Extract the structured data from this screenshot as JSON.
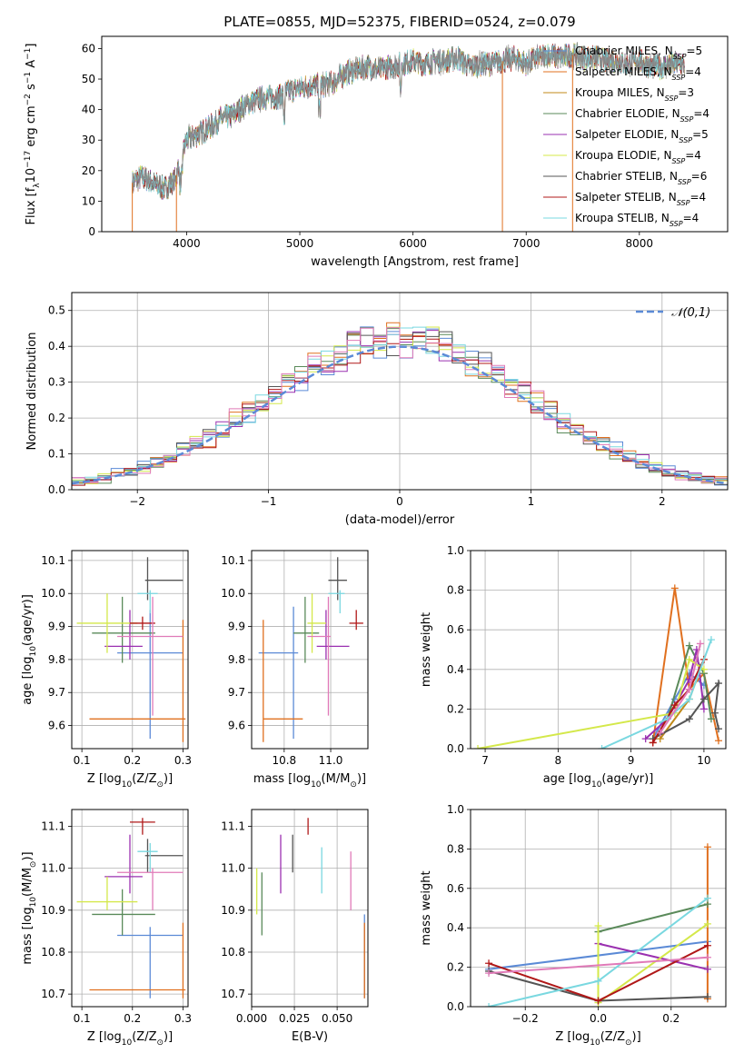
{
  "title": "PLATE=0855, MJD=52375, FIBERID=0524, z=0.079",
  "colors": {
    "Chabrier MILES": "#5b8ad6",
    "Salpeter MILES": "#e0701f",
    "Kroupa MILES": "#c08a1a",
    "Chabrier ELODIE": "#5a8a5a",
    "Salpeter ELODIE": "#9a30b0",
    "Kroupa ELODIE": "#d4e84a",
    "Chabrier STELIB": "#555555",
    "Salpeter STELIB": "#b01818",
    "Kroupa STELIB": "#7ad8e0",
    "pink": "#e07ab8",
    "gauss": "#5b8ad6",
    "grid": "#b0b0b0"
  },
  "chart_data": [
    {
      "id": "spectrum",
      "type": "line",
      "title": "PLATE=0855, MJD=52375, FIBERID=0524, z=0.079",
      "xlabel": "wavelength [Angstrom, rest frame]",
      "ylabel": "Flux [f_λ10^-17 erg cm^-2 s^-1 A^-1]",
      "xlim": [
        3250,
        8780
      ],
      "ylim": [
        0,
        64
      ],
      "xticks": [
        "4000",
        "5000",
        "6000",
        "7000",
        "8000"
      ],
      "yticks": [
        "0",
        "10",
        "20",
        "30",
        "40",
        "50",
        "60"
      ],
      "grid": false,
      "legend_position": "right",
      "legend": [
        {
          "name": "Chabrier MILES",
          "n": "5"
        },
        {
          "name": "Salpeter MILES",
          "n": "4"
        },
        {
          "name": "Kroupa MILES",
          "n": "3"
        },
        {
          "name": "Chabrier ELODIE",
          "n": "4"
        },
        {
          "name": "Salpeter ELODIE",
          "n": "5"
        },
        {
          "name": "Kroupa ELODIE",
          "n": "4"
        },
        {
          "name": "Chabrier STELIB",
          "n": "6"
        },
        {
          "name": "Salpeter STELIB",
          "n": "4"
        },
        {
          "name": "Kroupa STELIB",
          "n": "4"
        }
      ],
      "envelope": {
        "x": [
          3520,
          3600,
          3700,
          3800,
          3900,
          3950,
          4000,
          4100,
          4200,
          4300,
          4400,
          4500,
          4600,
          4700,
          4800,
          4900,
          5000,
          5100,
          5200,
          5300,
          5400,
          5500,
          5600,
          5700,
          5800,
          5900,
          6000,
          6100,
          6200,
          6300,
          6400,
          6500,
          6600,
          6700,
          6800,
          6900,
          7000,
          7100,
          7200,
          7300,
          7400,
          7500,
          7600,
          7700,
          7800,
          7900,
          8000,
          8100,
          8200,
          8300,
          8400
        ],
        "y": [
          16,
          18,
          16,
          14,
          17,
          25,
          30,
          32,
          34,
          37,
          38,
          41,
          43,
          44,
          44,
          46,
          47,
          48,
          48,
          49,
          52,
          53,
          54,
          53,
          54,
          55,
          56,
          55,
          56,
          56,
          57,
          54,
          55,
          55,
          56,
          57,
          55,
          57,
          58,
          57,
          58,
          57,
          57,
          56,
          56,
          55,
          56,
          54,
          54,
          55,
          55
        ]
      },
      "drop_lines_x": [
        3520,
        3910,
        6790,
        7410
      ]
    },
    {
      "id": "residuals",
      "type": "bar",
      "xlabel": "(data-model)/error",
      "ylabel": "Normed distribution",
      "xlim": [
        -2.5,
        2.5
      ],
      "ylim": [
        0,
        0.55
      ],
      "xticks": [
        "−2",
        "−1",
        "0",
        "1",
        "2"
      ],
      "yticks": [
        "0.0",
        "0.1",
        "0.2",
        "0.3",
        "0.4",
        "0.5"
      ],
      "grid": true,
      "legend": [
        {
          "name": "𝒩(0,1)"
        }
      ],
      "legend_position": "top-right",
      "bin_width": 0.1
    },
    {
      "id": "age-vs-Z",
      "type": "scatter",
      "xlabel": "Z [log10(Z/Z☉)]",
      "ylabel": "age  [log10(age/yr)]",
      "xlim": [
        0.08,
        0.31
      ],
      "ylim": [
        9.53,
        10.13
      ],
      "xticks": [
        "0.1",
        "0.2",
        "0.3"
      ],
      "yticks": [
        "9.6",
        "9.7",
        "9.8",
        "9.9",
        "10.0",
        "10.1"
      ],
      "grid": true,
      "points": [
        {
          "c": "Chabrier MILES",
          "x": 0.235,
          "xe": [
            0.17,
            0.3
          ],
          "y": 9.82,
          "ye": [
            9.56,
            9.95
          ]
        },
        {
          "c": "Salpeter MILES",
          "x": 0.3,
          "xe": [
            0.115,
            0.305
          ],
          "y": 9.62,
          "ye": [
            9.55,
            9.92
          ]
        },
        {
          "c": "Chabrier ELODIE",
          "x": 0.18,
          "xe": [
            0.12,
            0.245
          ],
          "y": 9.88,
          "ye": [
            9.79,
            9.99
          ]
        },
        {
          "c": "Salpeter ELODIE",
          "x": 0.195,
          "xe": [
            0.145,
            0.22
          ],
          "y": 9.84,
          "ye": [
            9.8,
            9.95
          ]
        },
        {
          "c": "Kroupa ELODIE",
          "x": 0.15,
          "xe": [
            0.09,
            0.21
          ],
          "y": 9.91,
          "ye": [
            9.82,
            10.0
          ]
        },
        {
          "c": "Chabrier STELIB",
          "x": 0.23,
          "xe": [
            0.225,
            0.3
          ],
          "y": 10.04,
          "ye": [
            9.98,
            10.11
          ]
        },
        {
          "c": "Salpeter STELIB",
          "x": 0.22,
          "xe": [
            0.195,
            0.245
          ],
          "y": 9.91,
          "ye": [
            9.89,
            9.93
          ]
        },
        {
          "c": "Kroupa STELIB",
          "x": 0.235,
          "xe": [
            0.21,
            0.25
          ],
          "y": 10.0,
          "ye": [
            9.94,
            10.01
          ]
        },
        {
          "c": "pink",
          "x": 0.24,
          "xe": [
            0.17,
            0.3
          ],
          "y": 9.87,
          "ye": [
            9.63,
            9.99
          ]
        }
      ]
    },
    {
      "id": "age-vs-mass",
      "type": "scatter",
      "xlabel": "mass [log10(M/M☉)]",
      "ylabel": "",
      "xlim": [
        10.66,
        11.16
      ],
      "ylim": [
        9.53,
        10.13
      ],
      "xticks": [
        "10.8",
        "11.0"
      ],
      "yticks": [
        "9.6",
        "9.7",
        "9.8",
        "9.9",
        "10.0",
        "10.1"
      ],
      "grid": true,
      "points": [
        {
          "c": "Chabrier MILES",
          "x": 10.84,
          "xe": [
            10.69,
            10.86
          ],
          "y": 9.82,
          "ye": [
            9.56,
            9.96
          ]
        },
        {
          "c": "Salpeter MILES",
          "x": 10.71,
          "xe": [
            10.71,
            10.88
          ],
          "y": 9.62,
          "ye": [
            9.55,
            9.92
          ]
        },
        {
          "c": "Chabrier ELODIE",
          "x": 10.89,
          "xe": [
            10.84,
            10.95
          ],
          "y": 9.88,
          "ye": [
            9.79,
            9.99
          ]
        },
        {
          "c": "Salpeter ELODIE",
          "x": 10.98,
          "xe": [
            10.94,
            11.08
          ],
          "y": 9.84,
          "ye": [
            9.8,
            9.95
          ]
        },
        {
          "c": "Kroupa ELODIE",
          "x": 10.92,
          "xe": [
            10.9,
            10.98
          ],
          "y": 9.91,
          "ye": [
            9.82,
            10.0
          ]
        },
        {
          "c": "Chabrier STELIB",
          "x": 11.03,
          "xe": [
            10.99,
            11.07
          ],
          "y": 10.04,
          "ye": [
            9.98,
            10.11
          ]
        },
        {
          "c": "Salpeter STELIB",
          "x": 11.11,
          "xe": [
            11.08,
            11.14
          ],
          "y": 9.91,
          "ye": [
            9.89,
            9.95
          ]
        },
        {
          "c": "Kroupa STELIB",
          "x": 11.04,
          "xe": [
            10.99,
            11.06
          ],
          "y": 10.0,
          "ye": [
            9.94,
            10.01
          ]
        },
        {
          "c": "pink",
          "x": 10.99,
          "xe": [
            10.9,
            11.0
          ],
          "y": 9.87,
          "ye": [
            9.63,
            9.99
          ]
        }
      ]
    },
    {
      "id": "weight-vs-age",
      "type": "line",
      "xlabel": "age  [log10(age/yr)]",
      "ylabel": "mass weight",
      "xlim": [
        6.8,
        10.3
      ],
      "ylim": [
        0,
        1
      ],
      "xticks": [
        "7",
        "8",
        "9",
        "10"
      ],
      "yticks": [
        "0.0",
        "0.2",
        "0.4",
        "0.6",
        "0.8",
        "1.0"
      ],
      "grid": true,
      "series": [
        {
          "c": "Chabrier MILES",
          "x": [
            9.3,
            9.6,
            9.8,
            10.0
          ],
          "y": [
            0.05,
            0.25,
            0.38,
            0.32
          ]
        },
        {
          "c": "Salpeter MILES",
          "x": [
            9.3,
            9.6,
            9.8,
            10.0,
            10.2
          ],
          "y": [
            0.03,
            0.81,
            0.3,
            0.38,
            0.04
          ]
        },
        {
          "c": "Kroupa MILES",
          "x": [
            9.4,
            9.8,
            10.0
          ],
          "y": [
            0.05,
            0.25,
            0.45
          ]
        },
        {
          "c": "Chabrier ELODIE",
          "x": [
            9.5,
            9.8,
            10.0,
            10.1
          ],
          "y": [
            0.15,
            0.52,
            0.38,
            0.15
          ]
        },
        {
          "c": "Salpeter ELODIE",
          "x": [
            9.2,
            9.5,
            9.8,
            9.9,
            10.0
          ],
          "y": [
            0.05,
            0.15,
            0.35,
            0.5,
            0.2
          ]
        },
        {
          "c": "Kroupa ELODIE",
          "x": [
            6.9,
            9.6,
            9.8,
            10.0
          ],
          "y": [
            0.0,
            0.18,
            0.45,
            0.4
          ]
        },
        {
          "c": "Chabrier STELIB",
          "x": [
            9.3,
            9.8,
            10.0,
            10.2,
            10.15,
            10.2
          ],
          "y": [
            0.05,
            0.15,
            0.25,
            0.33,
            0.18,
            0.1
          ]
        },
        {
          "c": "Salpeter STELIB",
          "x": [
            9.3,
            9.6,
            9.8,
            10.0
          ],
          "y": [
            0.03,
            0.22,
            0.3,
            0.45
          ]
        },
        {
          "c": "Kroupa STELIB",
          "x": [
            8.6,
            9.5,
            9.8,
            10.1
          ],
          "y": [
            0.0,
            0.15,
            0.25,
            0.55
          ]
        },
        {
          "c": "pink",
          "x": [
            9.4,
            9.8,
            9.95
          ],
          "y": [
            0.08,
            0.3,
            0.53
          ]
        }
      ]
    },
    {
      "id": "mass-vs-Z",
      "type": "scatter",
      "xlabel": "Z [log10(Z/Z☉)]",
      "ylabel": "mass [log10(M/M☉)]",
      "xlim": [
        0.08,
        0.31
      ],
      "ylim": [
        10.67,
        11.14
      ],
      "xticks": [
        "0.1",
        "0.2",
        "0.3"
      ],
      "yticks": [
        "10.7",
        "10.8",
        "10.9",
        "11.0",
        "11.1"
      ],
      "grid": true,
      "points": [
        {
          "c": "Chabrier MILES",
          "x": 0.235,
          "xe": [
            0.17,
            0.3
          ],
          "y": 10.84,
          "ye": [
            10.69,
            10.86
          ]
        },
        {
          "c": "Salpeter MILES",
          "x": 0.3,
          "xe": [
            0.115,
            0.305
          ],
          "y": 10.71,
          "ye": [
            10.69,
            10.87
          ]
        },
        {
          "c": "Chabrier ELODIE",
          "x": 0.18,
          "xe": [
            0.12,
            0.245
          ],
          "y": 10.89,
          "ye": [
            10.84,
            10.95
          ]
        },
        {
          "c": "Salpeter ELODIE",
          "x": 0.195,
          "xe": [
            0.145,
            0.22
          ],
          "y": 10.98,
          "ye": [
            10.94,
            11.08
          ]
        },
        {
          "c": "Kroupa ELODIE",
          "x": 0.15,
          "xe": [
            0.09,
            0.21
          ],
          "y": 10.92,
          "ye": [
            10.9,
            10.98
          ]
        },
        {
          "c": "Chabrier STELIB",
          "x": 0.23,
          "xe": [
            0.225,
            0.3
          ],
          "y": 11.03,
          "ye": [
            10.99,
            11.07
          ]
        },
        {
          "c": "Salpeter STELIB",
          "x": 0.22,
          "xe": [
            0.195,
            0.245
          ],
          "y": 11.11,
          "ye": [
            11.08,
            11.12
          ]
        },
        {
          "c": "Kroupa STELIB",
          "x": 0.235,
          "xe": [
            0.21,
            0.25
          ],
          "y": 11.04,
          "ye": [
            10.99,
            11.06
          ]
        },
        {
          "c": "pink",
          "x": 0.24,
          "xe": [
            0.17,
            0.3
          ],
          "y": 10.99,
          "ye": [
            10.9,
            11.0
          ]
        }
      ]
    },
    {
      "id": "mass-vs-EBV",
      "type": "scatter",
      "xlabel": "E(B-V)",
      "ylabel": "",
      "xlim": [
        0,
        0.068
      ],
      "ylim": [
        10.67,
        11.14
      ],
      "xticks": [
        "0.000",
        "0.025",
        "0.050"
      ],
      "yticks": [
        "10.7",
        "10.8",
        "10.9",
        "11.0",
        "11.1"
      ],
      "grid": true,
      "points": [
        {
          "c": "Chabrier MILES",
          "x": 0.066,
          "ye": [
            10.69,
            10.89
          ]
        },
        {
          "c": "Salpeter MILES",
          "x": 0.066,
          "ye": [
            10.69,
            10.87
          ]
        },
        {
          "c": "Kroupa ELODIE",
          "x": 0.003,
          "ye": [
            10.89,
            11.0
          ]
        },
        {
          "c": "Chabrier ELODIE",
          "x": 0.006,
          "ye": [
            10.84,
            10.99
          ]
        },
        {
          "c": "Salpeter ELODIE",
          "x": 0.017,
          "ye": [
            10.94,
            11.08
          ]
        },
        {
          "c": "Chabrier STELIB",
          "x": 0.024,
          "ye": [
            10.99,
            11.08
          ]
        },
        {
          "c": "Salpeter STELIB",
          "x": 0.033,
          "ye": [
            11.08,
            11.12
          ]
        },
        {
          "c": "Kroupa STELIB",
          "x": 0.041,
          "ye": [
            10.94,
            11.05
          ]
        },
        {
          "c": "pink",
          "x": 0.058,
          "ye": [
            10.9,
            11.04
          ]
        }
      ]
    },
    {
      "id": "weight-vs-Z",
      "type": "line",
      "xlabel": "Z [log10(Z/Z☉)]",
      "ylabel": "mass weight",
      "xlim": [
        -0.35,
        0.35
      ],
      "ylim": [
        0,
        1
      ],
      "xticks": [
        "−0.2",
        "0.0",
        "0.2"
      ],
      "yticks": [
        "0.0",
        "0.2",
        "0.4",
        "0.6",
        "0.8",
        "1.0"
      ],
      "grid": true,
      "series": [
        {
          "c": "Chabrier MILES",
          "x": [
            -0.3,
            0.3
          ],
          "y": [
            0.19,
            0.33
          ]
        },
        {
          "c": "Salpeter MILES",
          "x": [
            0.3,
            0.3
          ],
          "y": [
            0.04,
            0.81
          ]
        },
        {
          "c": "Chabrier ELODIE",
          "x": [
            0.0,
            0.3
          ],
          "y": [
            0.38,
            0.52
          ]
        },
        {
          "c": "Salpeter ELODIE",
          "x": [
            0.0,
            0.3
          ],
          "y": [
            0.32,
            0.19
          ]
        },
        {
          "c": "Kroupa ELODIE",
          "x": [
            0.0,
            0.0,
            0.3
          ],
          "y": [
            0.41,
            0.02,
            0.42
          ]
        },
        {
          "c": "Chabrier STELIB",
          "x": [
            -0.3,
            0.0,
            0.3
          ],
          "y": [
            0.18,
            0.03,
            0.05
          ]
        },
        {
          "c": "Salpeter STELIB",
          "x": [
            -0.3,
            0.0,
            0.3
          ],
          "y": [
            0.22,
            0.03,
            0.31
          ]
        },
        {
          "c": "Kroupa STELIB",
          "x": [
            -0.3,
            0.0,
            0.3
          ],
          "y": [
            0.0,
            0.13,
            0.55
          ]
        },
        {
          "c": "pink",
          "x": [
            -0.3,
            0.3
          ],
          "y": [
            0.17,
            0.25
          ]
        }
      ]
    }
  ]
}
